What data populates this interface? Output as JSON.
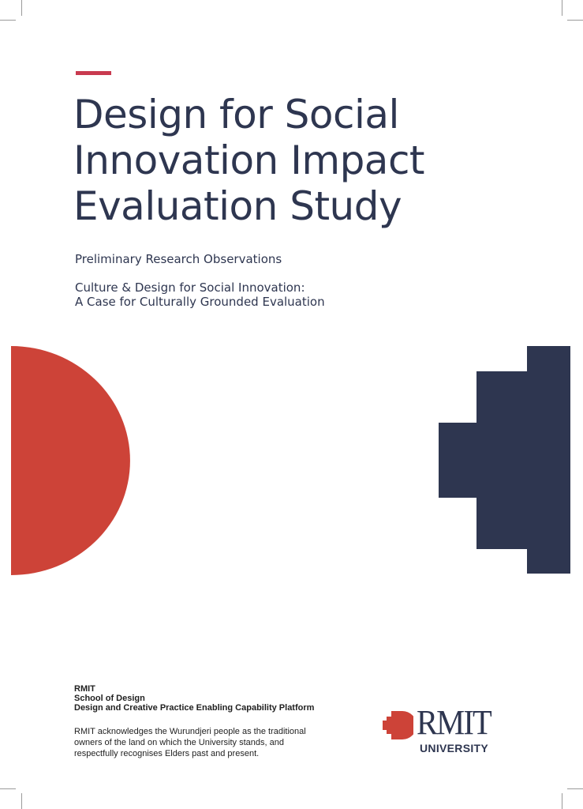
{
  "colors": {
    "navy": "#2e3650",
    "red": "#cd4338",
    "accent": "#c93a4f"
  },
  "cover": {
    "title_lines": [
      "Design for Social",
      "Innovation Impact",
      "Evaluation Study"
    ],
    "subtitle": "Preliminary Research Observations",
    "subtitle2_lines": [
      "Culture & Design for Social Innovation:",
      "A Case for Culturally Grounded Evaluation"
    ]
  },
  "footer": {
    "org_lines": [
      "RMIT",
      "School of Design",
      "Design and Creative Practice Enabling Capability Platform"
    ],
    "acknowledgement_lines": [
      "RMIT acknowledges the Wurundjeri people as the traditional",
      "owners of the land on which the University stands, and",
      "respectfully recognises Elders past and present."
    ]
  },
  "logo": {
    "wordmark": "RMIT",
    "subtext": "UNIVERSITY"
  },
  "icons": {
    "logo_mark": "rmit-pixel-mark-icon",
    "left_shape": "red-half-circle",
    "right_shape": "navy-stepped-shape"
  }
}
